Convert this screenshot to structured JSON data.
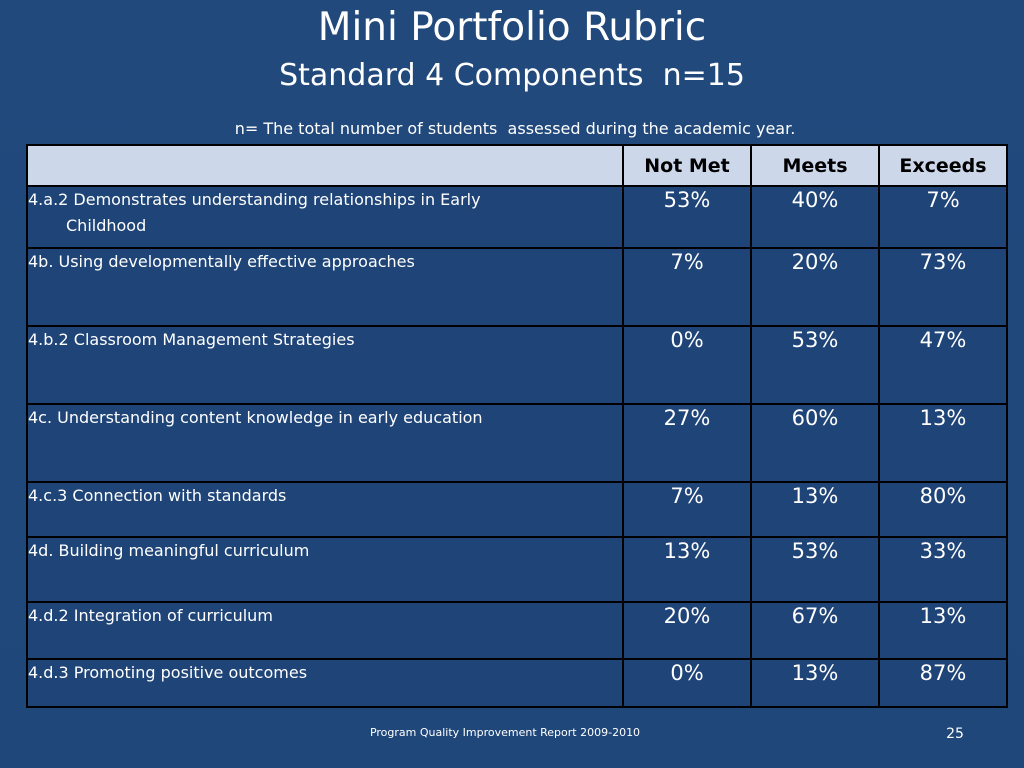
{
  "slide": {
    "title": "Mini Portfolio Rubric",
    "subtitle": "Standard 4 Components  n=15",
    "note": "n= The total number of students  assessed during the academic year."
  },
  "table": {
    "headers": [
      "",
      "Not Met",
      "Meets",
      "Exceeds"
    ],
    "rows": [
      {
        "label_line1": "4.a.2 Demonstrates understanding relationships in Early",
        "label_line2": "Childhood",
        "not_met": "53%",
        "meets": "40%",
        "exceeds": "7%"
      },
      {
        "label_line1": "4b. Using developmentally  effective approaches",
        "label_line2": "",
        "not_met": "7%",
        "meets": "20%",
        "exceeds": "73%"
      },
      {
        "label_line1": "4.b.2 Classroom Management Strategies",
        "label_line2": "",
        "not_met": "0%",
        "meets": "53%",
        "exceeds": "47%"
      },
      {
        "label_line1": "4c. Understanding content knowledge in early education",
        "label_line2": "",
        "not_met": "27%",
        "meets": "60%",
        "exceeds": "13%"
      },
      {
        "label_line1": "4.c.3 Connection with standards",
        "label_line2": "",
        "not_met": "7%",
        "meets": "13%",
        "exceeds": "80%"
      },
      {
        "label_line1": "4d. Building meaningful curriculum",
        "label_line2": "",
        "not_met": "13%",
        "meets": "53%",
        "exceeds": "33%"
      },
      {
        "label_line1": "4.d.2 Integration of curriculum",
        "label_line2": "",
        "not_met": "20%",
        "meets": "67%",
        "exceeds": "13%"
      },
      {
        "label_line1": "4.d.3 Promoting positive outcomes",
        "label_line2": "",
        "not_met": "0%",
        "meets": "13%",
        "exceeds": "87%"
      }
    ]
  },
  "footer": {
    "text": "Program Quality Improvement Report 2009-2010",
    "page_number": "25"
  },
  "colors": {
    "background": "#1f497d",
    "header_fill": "#cdd7ea",
    "row_fill": "#1f4477",
    "border": "#000000",
    "text": "#ffffff"
  }
}
